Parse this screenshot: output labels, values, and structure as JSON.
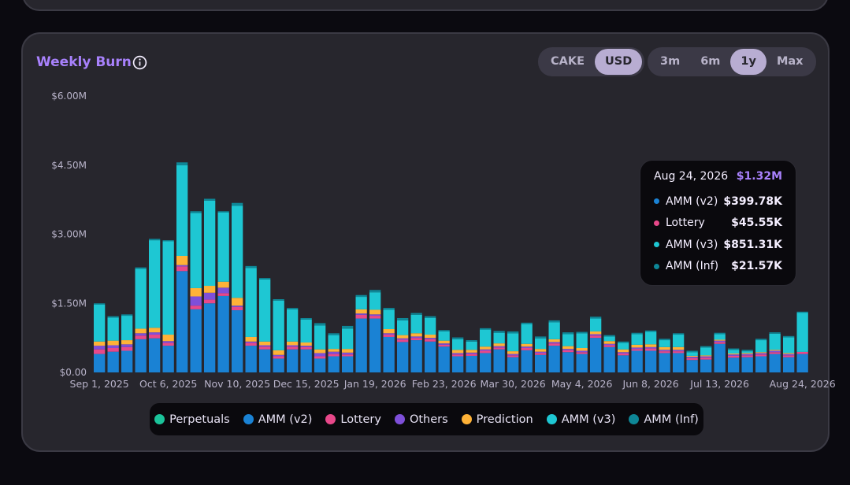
{
  "card": {
    "title": "Weekly Burn",
    "info_icon": "info-icon"
  },
  "unit_toggle": [
    {
      "label": "CAKE",
      "active": false
    },
    {
      "label": "USD",
      "active": true
    }
  ],
  "range_toggle": [
    {
      "label": "3m",
      "active": false
    },
    {
      "label": "6m",
      "active": false
    },
    {
      "label": "1y",
      "active": true
    },
    {
      "label": "Max",
      "active": false
    }
  ],
  "tooltip": {
    "date": "Aug 24, 2026",
    "total": "$1.32M",
    "rows": [
      {
        "label": "AMM (v2)",
        "value": "$399.78K",
        "color": "#1a82d4"
      },
      {
        "label": "Lottery",
        "value": "$45.55K",
        "color": "#e8488a"
      },
      {
        "label": "AMM (v3)",
        "value": "$851.31K",
        "color": "#1ec7d3"
      },
      {
        "label": "AMM (Inf)",
        "value": "$21.57K",
        "color": "#0e8797"
      }
    ]
  },
  "legend": [
    {
      "label": "Perpetuals",
      "color": "#1bc39a"
    },
    {
      "label": "AMM (v2)",
      "color": "#1a82d4"
    },
    {
      "label": "Lottery",
      "color": "#e8488a"
    },
    {
      "label": "Others",
      "color": "#7e4fd9"
    },
    {
      "label": "Prediction",
      "color": "#ffb237"
    },
    {
      "label": "AMM (v3)",
      "color": "#1ec7d3"
    },
    {
      "label": "AMM (Inf)",
      "color": "#0e8797"
    }
  ],
  "chart_data": {
    "type": "bar",
    "stacked": true,
    "title": "Weekly Burn",
    "unit": "USD (millions)",
    "ylim": [
      0,
      6
    ],
    "y_ticks": [
      0,
      1.5,
      3,
      4.5,
      6
    ],
    "y_tick_labels": [
      "$0.00",
      "$1.50M",
      "$3.00M",
      "$4.50M",
      "$6.00M"
    ],
    "x_tick_labels": [
      "Sep 1, 2025",
      "Oct 6, 2025",
      "Nov 10, 2025",
      "Dec 15, 2025",
      "Jan 19, 2026",
      "Feb 23, 2026",
      "Mar 30, 2026",
      "May 4, 2026",
      "Jun 8, 2026",
      "Jul 13, 2026",
      "Aug 24, 2026"
    ],
    "x_tick_indices": [
      0,
      5,
      10,
      15,
      20,
      25,
      30,
      35,
      40,
      45,
      51
    ],
    "series_colors": {
      "AMM (v2)": "#1a82d4",
      "Lottery": "#e8488a",
      "Others": "#7e4fd9",
      "Prediction": "#ffb237",
      "AMM (v3)": "#1ec7d3",
      "AMM (Inf)": "#0e8797",
      "Perpetuals": "#1bc39a"
    },
    "weeks": [
      {
        "v2": 0.4,
        "lot": 0.1,
        "oth": 0.08,
        "pred": 0.09,
        "v3": 0.8,
        "inf": 0.03
      },
      {
        "v2": 0.45,
        "lot": 0.08,
        "oth": 0.06,
        "pred": 0.1,
        "v3": 0.5,
        "inf": 0.03
      },
      {
        "v2": 0.47,
        "lot": 0.08,
        "oth": 0.06,
        "pred": 0.09,
        "v3": 0.53,
        "inf": 0.03
      },
      {
        "v2": 0.72,
        "lot": 0.08,
        "oth": 0.05,
        "pred": 0.1,
        "v3": 1.3,
        "inf": 0.03
      },
      {
        "v2": 0.74,
        "lot": 0.08,
        "oth": 0.05,
        "pred": 0.1,
        "v3": 1.9,
        "inf": 0.03
      },
      {
        "v2": 0.58,
        "lot": 0.06,
        "oth": 0.04,
        "pred": 0.14,
        "v3": 2.03,
        "inf": 0.02
      },
      {
        "v2": 2.2,
        "lot": 0.1,
        "oth": 0.03,
        "pred": 0.2,
        "v3": 1.97,
        "inf": 0.06
      },
      {
        "v2": 1.37,
        "lot": 0.08,
        "oth": 0.2,
        "pred": 0.18,
        "v3": 1.63,
        "inf": 0.04
      },
      {
        "v2": 1.5,
        "lot": 0.08,
        "oth": 0.15,
        "pred": 0.15,
        "v3": 1.85,
        "inf": 0.04
      },
      {
        "v2": 1.66,
        "lot": 0.06,
        "oth": 0.12,
        "pred": 0.13,
        "v3": 1.5,
        "inf": 0.03
      },
      {
        "v2": 1.35,
        "lot": 0.07,
        "oth": 0.03,
        "pred": 0.17,
        "v3": 2.0,
        "inf": 0.06
      },
      {
        "v2": 0.58,
        "lot": 0.06,
        "oth": 0.03,
        "pred": 0.1,
        "v3": 1.5,
        "inf": 0.04
      },
      {
        "v2": 0.5,
        "lot": 0.06,
        "oth": 0.03,
        "pred": 0.08,
        "v3": 1.35,
        "inf": 0.03
      },
      {
        "v2": 0.3,
        "lot": 0.05,
        "oth": 0.03,
        "pred": 0.1,
        "v3": 1.08,
        "inf": 0.03
      },
      {
        "v2": 0.5,
        "lot": 0.06,
        "oth": 0.03,
        "pred": 0.08,
        "v3": 0.7,
        "inf": 0.03
      },
      {
        "v2": 0.5,
        "lot": 0.05,
        "oth": 0.03,
        "pred": 0.07,
        "v3": 0.5,
        "inf": 0.03
      },
      {
        "v2": 0.3,
        "lot": 0.05,
        "oth": 0.07,
        "pred": 0.08,
        "v3": 0.52,
        "inf": 0.05
      },
      {
        "v2": 0.35,
        "lot": 0.05,
        "oth": 0.05,
        "pred": 0.06,
        "v3": 0.3,
        "inf": 0.04
      },
      {
        "v2": 0.35,
        "lot": 0.04,
        "oth": 0.04,
        "pred": 0.08,
        "v3": 0.44,
        "inf": 0.06
      },
      {
        "v2": 1.17,
        "lot": 0.08,
        "oth": 0.03,
        "pred": 0.09,
        "v3": 0.27,
        "inf": 0.04
      },
      {
        "v2": 1.17,
        "lot": 0.06,
        "oth": 0.03,
        "pred": 0.1,
        "v3": 0.38,
        "inf": 0.05
      },
      {
        "v2": 0.77,
        "lot": 0.05,
        "oth": 0.03,
        "pred": 0.09,
        "v3": 0.42,
        "inf": 0.04
      },
      {
        "v2": 0.66,
        "lot": 0.05,
        "oth": 0.03,
        "pred": 0.07,
        "v3": 0.32,
        "inf": 0.05
      },
      {
        "v2": 0.7,
        "lot": 0.05,
        "oth": 0.03,
        "pred": 0.07,
        "v3": 0.4,
        "inf": 0.04
      },
      {
        "v2": 0.67,
        "lot": 0.05,
        "oth": 0.03,
        "pred": 0.07,
        "v3": 0.36,
        "inf": 0.04
      },
      {
        "v2": 0.56,
        "lot": 0.04,
        "oth": 0.03,
        "pred": 0.06,
        "v3": 0.2,
        "inf": 0.03
      },
      {
        "v2": 0.35,
        "lot": 0.04,
        "oth": 0.03,
        "pred": 0.07,
        "v3": 0.23,
        "inf": 0.04
      },
      {
        "v2": 0.36,
        "lot": 0.04,
        "oth": 0.03,
        "pred": 0.06,
        "v3": 0.18,
        "inf": 0.03
      },
      {
        "v2": 0.42,
        "lot": 0.05,
        "oth": 0.03,
        "pred": 0.06,
        "v3": 0.37,
        "inf": 0.03
      },
      {
        "v2": 0.5,
        "lot": 0.04,
        "oth": 0.03,
        "pred": 0.06,
        "v3": 0.23,
        "inf": 0.04
      },
      {
        "v2": 0.33,
        "lot": 0.04,
        "oth": 0.03,
        "pred": 0.06,
        "v3": 0.39,
        "inf": 0.04
      },
      {
        "v2": 0.48,
        "lot": 0.05,
        "oth": 0.03,
        "pred": 0.06,
        "v3": 0.43,
        "inf": 0.03
      },
      {
        "v2": 0.38,
        "lot": 0.04,
        "oth": 0.03,
        "pred": 0.06,
        "v3": 0.23,
        "inf": 0.04
      },
      {
        "v2": 0.58,
        "lot": 0.05,
        "oth": 0.03,
        "pred": 0.06,
        "v3": 0.37,
        "inf": 0.04
      },
      {
        "v2": 0.44,
        "lot": 0.04,
        "oth": 0.03,
        "pred": 0.06,
        "v3": 0.26,
        "inf": 0.04
      },
      {
        "v2": 0.4,
        "lot": 0.04,
        "oth": 0.03,
        "pred": 0.06,
        "v3": 0.32,
        "inf": 0.03
      },
      {
        "v2": 0.75,
        "lot": 0.05,
        "oth": 0.03,
        "pred": 0.06,
        "v3": 0.28,
        "inf": 0.04
      },
      {
        "v2": 0.55,
        "lot": 0.04,
        "oth": 0.03,
        "pred": 0.06,
        "v3": 0.1,
        "inf": 0.03
      },
      {
        "v2": 0.37,
        "lot": 0.04,
        "oth": 0.03,
        "pred": 0.06,
        "v3": 0.14,
        "inf": 0.03
      },
      {
        "v2": 0.47,
        "lot": 0.04,
        "oth": 0.03,
        "pred": 0.06,
        "v3": 0.23,
        "inf": 0.03
      },
      {
        "v2": 0.47,
        "lot": 0.05,
        "oth": 0.03,
        "pred": 0.06,
        "v3": 0.27,
        "inf": 0.03
      },
      {
        "v2": 0.42,
        "lot": 0.04,
        "oth": 0.03,
        "pred": 0.06,
        "v3": 0.15,
        "inf": 0.03
      },
      {
        "v2": 0.42,
        "lot": 0.04,
        "oth": 0.03,
        "pred": 0.06,
        "v3": 0.27,
        "inf": 0.03
      },
      {
        "v2": 0.27,
        "lot": 0.04,
        "oth": 0.03,
        "pred": 0.02,
        "v3": 0.08,
        "inf": 0.03
      },
      {
        "v2": 0.28,
        "lot": 0.04,
        "oth": 0.03,
        "pred": 0.02,
        "v3": 0.17,
        "inf": 0.03
      },
      {
        "v2": 0.62,
        "lot": 0.04,
        "oth": 0.03,
        "pred": 0.02,
        "v3": 0.12,
        "inf": 0.03
      },
      {
        "v2": 0.32,
        "lot": 0.04,
        "oth": 0.03,
        "pred": 0.02,
        "v3": 0.08,
        "inf": 0.03
      },
      {
        "v2": 0.33,
        "lot": 0.04,
        "oth": 0.03,
        "pred": 0.02,
        "v3": 0.04,
        "inf": 0.03
      },
      {
        "v2": 0.35,
        "lot": 0.04,
        "oth": 0.03,
        "pred": 0.02,
        "v3": 0.26,
        "inf": 0.03
      },
      {
        "v2": 0.4,
        "lot": 0.04,
        "oth": 0.03,
        "pred": 0.02,
        "v3": 0.35,
        "inf": 0.03
      },
      {
        "v2": 0.33,
        "lot": 0.04,
        "oth": 0.03,
        "pred": 0.02,
        "v3": 0.34,
        "inf": 0.03
      },
      {
        "v2": 0.4,
        "lot": 0.046,
        "oth": 0,
        "pred": 0,
        "v3": 0.851,
        "inf": 0.022
      }
    ]
  }
}
